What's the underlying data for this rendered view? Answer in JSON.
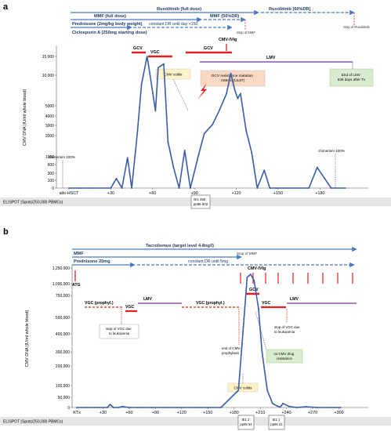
{
  "colors": {
    "curve": "#3a5ba8",
    "arrow": "#4a78c4",
    "treatment": "#e02020",
    "antiviral": "#7030a0",
    "callout_yellow": "#fdf2c8",
    "callout_orange": "#f8d9c4",
    "callout_green": "#daeccf"
  },
  "panel_a": {
    "label": "a",
    "drug_arrows": [
      "Ruxolitinib (full dose)",
      "Ruxolitinib (60%DR)",
      "MMF (full dose)",
      "MMF (50%DR)",
      "Prednisone (2mg/kg body weight)",
      "constant DR until day +150",
      "Ciclosporin A (250mg starting dose)"
    ],
    "stop_labels": [
      "Stop of MMF",
      "Stop of Ruxolitinib"
    ],
    "treatment_labels": [
      "GCV",
      "VGC",
      "GCV",
      "CMV-IVIg",
      "LMV"
    ],
    "callouts": [
      "CMV colitis",
      "GCV resistance mutation A594V (UL97)",
      "End of LMV 636 days after Tx"
    ],
    "chimerism_labels": [
      "chimerism 100%",
      "chimerism 100%"
    ],
    "elispot_label": "ELISPOT (Spots/250,000 PBMCs)",
    "elispot_value": [
      "IE1 460,",
      "pp65 602"
    ]
  },
  "panel_b": {
    "label": "b",
    "drug_arrows": [
      "Tacrolismus (target level 4-8ng/l)",
      "MMF",
      "Prednisone 20mg",
      "constant DR until 5mg"
    ],
    "stop_labels": [
      "Stop of MMF"
    ],
    "treatment_labels": [
      "CMV-IVIg",
      "ATG",
      "GCV",
      "VGC (prophyl.)",
      "VGC",
      "LMV",
      "VGC (prophyl.)",
      "VGC",
      "LMV"
    ],
    "callouts": [
      "stop of VGC due to leukopenia",
      "end of CMV-prophylaxis",
      "no CMV drug resistance",
      "stop of VGC due to leukopenia",
      "CMV colitis"
    ],
    "elispot_label": "ELISPOT (Spots/250,000 PBMCs)",
    "elispot_values": [
      [
        "IE1 2",
        "pp65 54"
      ],
      [
        "IE1 1",
        "pp65 41"
      ]
    ]
  },
  "chart_data": [
    {
      "type": "line",
      "title": "",
      "xlabel": "",
      "ylabel": "CMV DNA (IU/ml whole blood)",
      "grid": false,
      "x_tick_labels": [
        "allo-HSCT",
        "+30",
        "+60",
        "+90",
        "+120",
        "+150",
        "+180"
      ],
      "y_tick_labels": [
        "0",
        "100",
        "300",
        "600",
        "1000",
        "2000",
        "3000",
        "4000",
        "5000",
        "10,000",
        "15,000"
      ],
      "x": [
        0,
        8,
        15,
        30,
        34,
        38,
        42,
        45,
        49,
        52,
        56,
        58,
        62,
        64,
        68,
        71,
        75,
        79,
        83,
        87,
        93,
        97,
        103,
        108,
        113,
        116,
        119,
        121,
        123,
        127,
        131,
        135,
        140,
        144,
        149,
        155,
        160,
        166,
        172,
        178,
        188,
        198
      ],
      "y": [
        0,
        0,
        0,
        0,
        150,
        0,
        950,
        0,
        2200,
        8500,
        15000,
        10500,
        4500,
        12000,
        13000,
        1700,
        500,
        0,
        1300,
        0,
        1100,
        2200,
        3100,
        4600,
        7000,
        10500,
        7500,
        6200,
        7000,
        2500,
        1200,
        0,
        400,
        0,
        0,
        0,
        0,
        0,
        0,
        500,
        0,
        0
      ]
    },
    {
      "type": "line",
      "title": "",
      "xlabel": "",
      "ylabel": "CMV DNA (IU/ml whole blood)",
      "grid": false,
      "x_tick_labels": [
        "KTx",
        "+30",
        "+60",
        "+90",
        "+120",
        "+150",
        "+180",
        "+210",
        "+240",
        "+270",
        "+300"
      ],
      "y_tick_labels": [
        "0",
        "50,000",
        "100,000",
        "200,000",
        "300,000",
        "400,000",
        "500,000",
        "750,000",
        "1,000,000",
        "1,250,000"
      ],
      "x": [
        0,
        12,
        20,
        35,
        38,
        42,
        48,
        52,
        60,
        70,
        85,
        100,
        115,
        135,
        150,
        165,
        185,
        190,
        195,
        199,
        203,
        208,
        212,
        218,
        224,
        229,
        233,
        236,
        243,
        252,
        262,
        275,
        290,
        302
      ],
      "y": [
        0,
        0,
        0,
        0,
        15000,
        0,
        0,
        5000,
        0,
        0,
        0,
        0,
        0,
        0,
        0,
        0,
        80000,
        400000,
        1100000,
        1150000,
        1050000,
        600000,
        300000,
        80000,
        20000,
        8000,
        2000,
        20000,
        5000,
        0,
        4000,
        0,
        0,
        0
      ]
    }
  ]
}
